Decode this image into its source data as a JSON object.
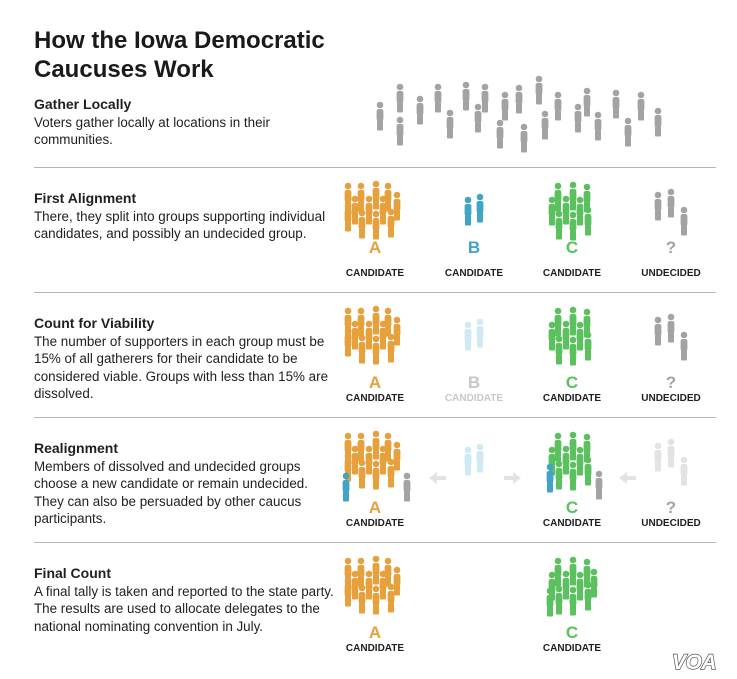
{
  "title": "How the Iowa Democratic Caucuses Work",
  "colors": {
    "candidate_a": "#e6a03c",
    "candidate_b": "#3fa4c6",
    "candidate_c": "#5bc15f",
    "undecided": "#a3a3a3",
    "faded_b": "#cfeaf2",
    "faded_undecided": "#e3e3e3",
    "faded_label": "#c8c8c8",
    "arrow": "#e3e3e3",
    "divider": "#b5b5b5"
  },
  "icons": [
    "person-icon",
    "arrow-left-icon",
    "arrow-right-icon"
  ],
  "sections": [
    {
      "heading": "Gather Locally",
      "text": "Voters gather locally at locations in their communities."
    },
    {
      "heading": "First Alignment",
      "text": "There, they split into groups supporting individual candidates, and possibly an undecided group.",
      "groups": [
        {
          "letter": "A",
          "label": "CANDIDATE"
        },
        {
          "letter": "B",
          "label": "CANDIDATE"
        },
        {
          "letter": "C",
          "label": "CANDIDATE"
        },
        {
          "letter": "?",
          "label": "UNDECIDED"
        }
      ]
    },
    {
      "heading": "Count for Viability",
      "text": "The number of supporters in each group must be 15% of all gatherers for their candidate to be considered viable. Groups with less than 15% are dissolved.",
      "groups": [
        {
          "letter": "A",
          "label": "CANDIDATE"
        },
        {
          "letter": "B",
          "label": "CANDIDATE"
        },
        {
          "letter": "C",
          "label": "CANDIDATE"
        },
        {
          "letter": "?",
          "label": "UNDECIDED"
        }
      ]
    },
    {
      "heading": "Realignment",
      "text": "Members of dissolved and undecided groups choose a new candidate or remain undecided. They can also be persuaded by other caucus participants.",
      "groups": [
        {
          "letter": "A",
          "label": "CANDIDATE"
        },
        {
          "letter": "C",
          "label": "CANDIDATE"
        },
        {
          "letter": "?",
          "label": "UNDECIDED"
        }
      ]
    },
    {
      "heading": "Final Count",
      "text": "A final tally is taken and reported to the state party. The results are used to allocate delegates to the national nominating convention in July.",
      "groups": [
        {
          "letter": "A",
          "label": "CANDIDATE"
        },
        {
          "letter": "C",
          "label": "CANDIDATE"
        }
      ]
    }
  ],
  "logo": "VOA"
}
